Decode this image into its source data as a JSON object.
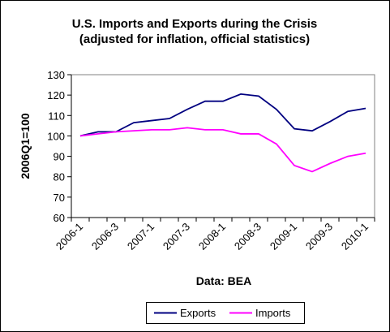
{
  "chart_data": {
    "type": "line",
    "title": "U.S. Imports and Exports during the Crisis",
    "subtitle": "(adjusted for inflation, official statistics)",
    "y_label": "2006Q1=100",
    "x_label": "Data: BEA",
    "categories": [
      "2006-1",
      null,
      "2006-3",
      null,
      "2007-1",
      null,
      "2007-3",
      null,
      "2008-1",
      null,
      "2008-3",
      null,
      "2009-1",
      null,
      "2009-3",
      null,
      "2010-1"
    ],
    "series": [
      {
        "name": "Exports",
        "color": "#000080",
        "values": [
          100,
          102,
          102,
          106.5,
          107.5,
          108.5,
          113,
          117,
          117,
          120.5,
          119.5,
          113,
          103.5,
          102.5,
          107,
          112,
          113.5
        ]
      },
      {
        "name": "Imports",
        "color": "#ff00ff",
        "values": [
          100,
          101,
          102,
          102.5,
          103,
          103,
          104,
          103,
          103,
          101,
          101,
          96,
          85.5,
          82.5,
          86.5,
          90,
          91.5
        ]
      }
    ],
    "ylim": [
      60,
      130
    ],
    "yticks": [
      60,
      70,
      80,
      90,
      100,
      110,
      120,
      130
    ],
    "grid": false,
    "legend": "bottom"
  }
}
